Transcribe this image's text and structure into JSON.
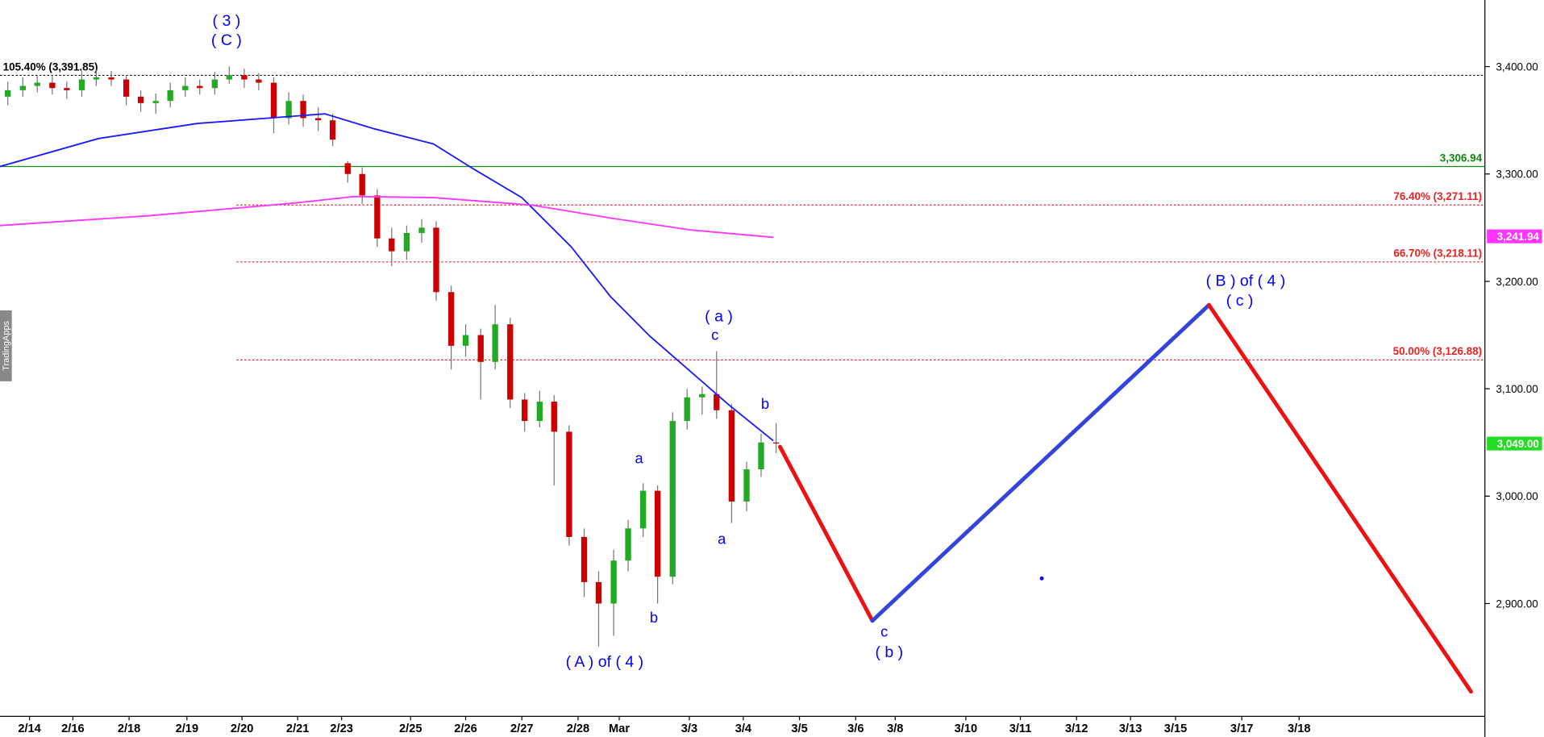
{
  "chart_data": {
    "type": "candlestick",
    "watermark": "TradingApps",
    "xlim": [
      0,
      26.69
    ],
    "ylim": [
      2795,
      3462
    ],
    "xticks": [
      {
        "value": 0.53,
        "label": "2/14"
      },
      {
        "value": 1.31,
        "label": "2/16"
      },
      {
        "value": 2.32,
        "label": "2/18"
      },
      {
        "value": 3.36,
        "label": "2/19"
      },
      {
        "value": 4.35,
        "label": "2/20"
      },
      {
        "value": 5.35,
        "label": "2/21"
      },
      {
        "value": 6.14,
        "label": "2/23"
      },
      {
        "value": 7.38,
        "label": "2/25"
      },
      {
        "value": 8.37,
        "label": "2/26"
      },
      {
        "value": 9.38,
        "label": "2/27"
      },
      {
        "value": 10.39,
        "label": "2/28"
      },
      {
        "value": 11.13,
        "label": "Mar"
      },
      {
        "value": 12.39,
        "label": "3/3"
      },
      {
        "value": 13.36,
        "label": "3/4"
      },
      {
        "value": 14.37,
        "label": "3/5"
      },
      {
        "value": 15.38,
        "label": "3/6"
      },
      {
        "value": 16.09,
        "label": "3/8"
      },
      {
        "value": 17.36,
        "label": "3/10"
      },
      {
        "value": 18.34,
        "label": "3/11"
      },
      {
        "value": 19.35,
        "label": "3/12"
      },
      {
        "value": 20.32,
        "label": "3/13"
      },
      {
        "value": 21.13,
        "label": "3/15"
      },
      {
        "value": 22.32,
        "label": "3/17"
      },
      {
        "value": 23.35,
        "label": "3/18"
      }
    ],
    "yticks": [
      {
        "value": 2900,
        "label": "2,900.00"
      },
      {
        "value": 3000,
        "label": "3,000.00"
      },
      {
        "value": 3100,
        "label": "3,100.00"
      },
      {
        "value": 3200,
        "label": "3,200.00"
      },
      {
        "value": 3300,
        "label": "3,300.00"
      },
      {
        "value": 3400,
        "label": "3,400.00"
      }
    ],
    "up_color": "#22aa22",
    "down_color": "#cc0000",
    "candles": {
      "x": [
        0.14,
        0.41,
        0.67,
        0.94,
        1.2,
        1.47,
        1.73,
        2.0,
        2.27,
        2.53,
        2.8,
        3.06,
        3.33,
        3.59,
        3.86,
        4.12,
        4.39,
        4.65,
        4.92,
        5.19,
        5.45,
        5.72,
        5.98,
        6.25,
        6.51,
        6.78,
        7.04,
        7.31,
        7.58,
        7.84,
        8.11,
        8.37,
        8.64,
        8.9,
        9.17,
        9.43,
        9.7,
        9.96,
        10.23,
        10.5,
        10.76,
        11.03,
        11.29,
        11.56,
        11.82,
        12.09,
        12.35,
        12.62,
        12.88,
        13.15,
        13.42,
        13.68,
        13.95
      ],
      "open": [
        3372,
        3378,
        3382,
        3385,
        3380,
        3378,
        3388,
        3390,
        3388,
        3372,
        3366,
        3368,
        3378,
        3382,
        3380,
        3388,
        3392,
        3388,
        3385,
        3352,
        3368,
        3352,
        3350,
        3310,
        3300,
        3280,
        3240,
        3228,
        3245,
        3250,
        3190,
        3140,
        3150,
        3125,
        3160,
        3090,
        3070,
        3088,
        3060,
        2962,
        2920,
        2900,
        2940,
        2970,
        3005,
        2925,
        3070,
        3092,
        3095,
        3080,
        2995,
        3025,
        3050
      ],
      "high": [
        3386,
        3390,
        3392,
        3392,
        3386,
        3396,
        3397,
        3396,
        3392,
        3378,
        3375,
        3385,
        3390,
        3388,
        3395,
        3400,
        3398,
        3394,
        3390,
        3376,
        3374,
        3362,
        3356,
        3312,
        3306,
        3286,
        3250,
        3252,
        3258,
        3256,
        3196,
        3160,
        3156,
        3178,
        3166,
        3096,
        3098,
        3094,
        3066,
        2970,
        2930,
        2950,
        2978,
        3012,
        3010,
        3078,
        3100,
        3102,
        3135,
        3086,
        3032,
        3058,
        3068
      ],
      "low": [
        3364,
        3372,
        3376,
        3374,
        3370,
        3372,
        3382,
        3382,
        3364,
        3358,
        3356,
        3362,
        3372,
        3374,
        3374,
        3384,
        3380,
        3378,
        3338,
        3346,
        3344,
        3340,
        3326,
        3292,
        3272,
        3232,
        3214,
        3220,
        3236,
        3182,
        3118,
        3130,
        3090,
        3118,
        3082,
        3060,
        3064,
        3010,
        2954,
        2906,
        2860,
        2870,
        2930,
        2962,
        2900,
        2918,
        3062,
        3076,
        3072,
        2975,
        2986,
        3018,
        3040
      ],
      "close": [
        3378,
        3382,
        3385,
        3380,
        3378,
        3388,
        3390,
        3388,
        3372,
        3366,
        3368,
        3378,
        3382,
        3380,
        3388,
        3392,
        3388,
        3385,
        3352,
        3368,
        3352,
        3350,
        3332,
        3300,
        3280,
        3240,
        3228,
        3245,
        3250,
        3190,
        3140,
        3150,
        3125,
        3160,
        3090,
        3070,
        3088,
        3060,
        2962,
        2920,
        2900,
        2940,
        2970,
        3005,
        2925,
        3070,
        3092,
        3095,
        3080,
        2995,
        3025,
        3050,
        3049
      ]
    },
    "overlays": [
      {
        "color": "#1a1aff",
        "width": 1.5,
        "x": [
          0,
          1.77,
          3.54,
          5.84,
          6.73,
          7.79,
          8.5,
          9.38,
          10.27,
          10.97,
          11.68,
          12.39,
          13.1,
          13.89
        ],
        "values": [
          3307,
          3333,
          3347,
          3356,
          3342,
          3328,
          3305,
          3278,
          3232,
          3186,
          3149,
          3117,
          3085,
          3052
        ]
      },
      {
        "color": "#ff33ff",
        "width": 1.5,
        "x": [
          0,
          2.65,
          5.31,
          6.37,
          7.79,
          9.56,
          10.97,
          12.39,
          13.89
        ],
        "values": [
          3252,
          3261,
          3273,
          3279,
          3278,
          3271,
          3259,
          3248,
          3241
        ]
      },
      {
        "color": "#ee1111",
        "width": 4,
        "x": [
          14.02,
          15.68
        ],
        "values": [
          3046,
          2884
        ]
      },
      {
        "color": "#3344dd",
        "width": 4,
        "x": [
          15.68,
          21.73
        ],
        "values": [
          2884,
          3178
        ]
      },
      {
        "color": "#ee1111",
        "width": 4,
        "x": [
          21.73,
          26.44
        ],
        "values": [
          3178,
          2818
        ]
      }
    ],
    "levels": [
      {
        "value": 3391.85,
        "label": "105.40% (3,391.85)",
        "color": "#000000",
        "style": "dotted",
        "x_start": 0,
        "label_side": "left"
      },
      {
        "value": 3306.94,
        "label": "3,306.94",
        "color": "#118811",
        "style": "solid",
        "x_start": 0,
        "label_side": "right"
      },
      {
        "value": 3271.11,
        "label": "76.40% (3,271.11)",
        "color": "#ee2222",
        "style": "dotted",
        "x_start": 4.25,
        "label_side": "right"
      },
      {
        "value": 3218.11,
        "label": "66.70% (3,218.11)",
        "color": "#ee2222",
        "style": "dotted",
        "x_start": 4.25,
        "label_side": "right"
      },
      {
        "value": 3126.88,
        "label": "50.00% (3,126.88)",
        "color": "#ee2222",
        "style": "dotted",
        "x_start": 4.25,
        "label_side": "right"
      }
    ],
    "price_tags": [
      {
        "value": 3241.94,
        "label": "3,241.94",
        "color": "#ff33ff"
      },
      {
        "value": 3049,
        "label": "3,049.00",
        "color": "#22dd22"
      }
    ],
    "annotations": [
      "( 3 )",
      "( C )",
      "( a )",
      "c",
      "b",
      "a",
      "a",
      "b",
      "( A ) of ( 4 )",
      "c",
      "( b )",
      "( B ) of ( 4 )",
      "( c )"
    ]
  }
}
